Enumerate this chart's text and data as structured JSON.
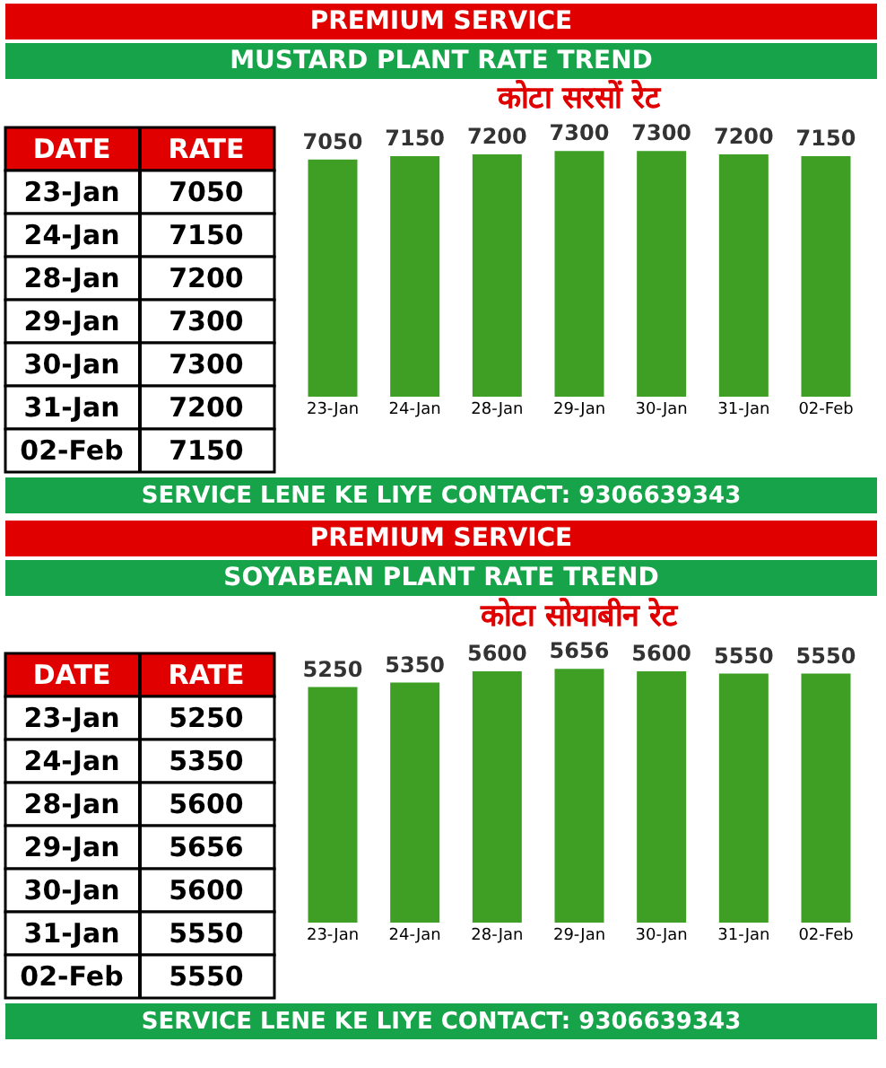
{
  "chart_data": [
    {
      "type": "other",
      "xlabel": "DATE",
      "ylabel": "RATE",
      "categories": [
        "23-Jan",
        "24-Jan",
        "28-Jan",
        "29-Jan",
        "30-Jan",
        "31-Jan",
        "02-Feb"
      ],
      "values": [
        7050,
        7150,
        7200,
        7300,
        7300,
        7200,
        7150
      ],
      "data_labels": true
    },
    {
      "type": "bar",
      "title": "कोटा सरसों रेट",
      "annotations": [
        "PREMIUM SERVICE",
        "MUSTARD PLANT RATE TREND",
        "SERVICE LENE KE LIYE CONTACT: 9306639343"
      ],
      "categories": [
        "23-Jan",
        "24-Jan",
        "28-Jan",
        "29-Jan",
        "30-Jan",
        "31-Jan",
        "02-Feb"
      ],
      "values": [
        7050,
        7150,
        7200,
        7300,
        7300,
        7200,
        7150
      ],
      "color": "#3f9f25",
      "data_labels": true,
      "tick_labels": "x"
    },
    {
      "type": "other",
      "xlabel": "DATE",
      "ylabel": "RATE",
      "categories": [
        "23-Jan",
        "24-Jan",
        "28-Jan",
        "29-Jan",
        "30-Jan",
        "31-Jan",
        "02-Feb"
      ],
      "values": [
        5250,
        5350,
        5600,
        5656,
        5600,
        5550,
        5550
      ],
      "data_labels": true
    },
    {
      "type": "bar",
      "title": "कोटा सोयाबीन रेट",
      "annotations": [
        "PREMIUM SERVICE",
        "SOYABEAN PLANT RATE TREND",
        "SERVICE LENE KE LIYE CONTACT: 9306639343"
      ],
      "categories": [
        "23-Jan",
        "24-Jan",
        "28-Jan",
        "29-Jan",
        "30-Jan",
        "31-Jan",
        "02-Feb"
      ],
      "values": [
        5250,
        5350,
        5600,
        5656,
        5600,
        5550,
        5550
      ],
      "color": "#3f9f25",
      "data_labels": true,
      "tick_labels": "x"
    }
  ]
}
